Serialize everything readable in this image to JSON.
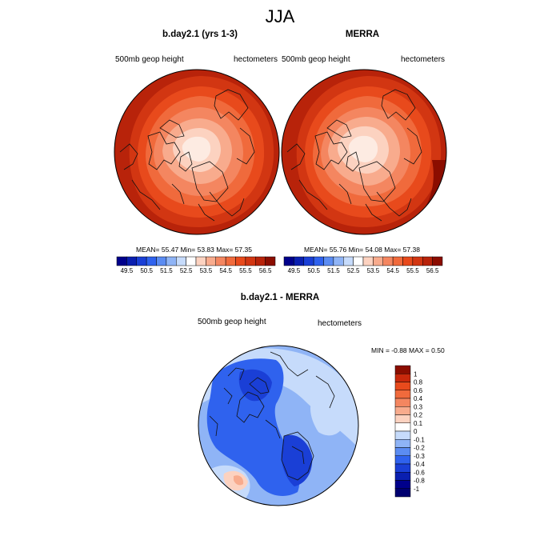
{
  "figure": {
    "title": "JJA"
  },
  "panels": [
    {
      "title": "b.day2.1 (yrs 1-3)",
      "left_label": "500mb geop height",
      "right_label": "hectometers",
      "stats": {
        "mean_label": "MEAN=",
        "mean": "55.47",
        "min_label": "Min=",
        "min": "53.83",
        "max_label": "Max=",
        "max": "57.35"
      }
    },
    {
      "title": "MERRA",
      "left_label": "500mb geop height",
      "right_label": "hectometers",
      "stats": {
        "mean_label": "MEAN=",
        "mean": "55.76",
        "min_label": "Min=",
        "min": "54.08",
        "max_label": "Max=",
        "max": "57.38"
      }
    }
  ],
  "colorbar_top": {
    "ticks": [
      "49.5",
      "50.5",
      "51.5",
      "52.5",
      "53.5",
      "54.5",
      "55.5",
      "56.5"
    ],
    "colors": [
      "#00008b",
      "#0a1fb0",
      "#1a3fd6",
      "#2f62ee",
      "#5b8cf2",
      "#8fb4f6",
      "#c6dbfb",
      "#ffffff",
      "#fcd2c0",
      "#f8ab8d",
      "#f48660",
      "#f06a3c",
      "#e84a1c",
      "#d23612",
      "#b8230a",
      "#8b0d00"
    ]
  },
  "diff_panel": {
    "title": "b.day2.1 - MERRA",
    "left_label": "500mb geop height",
    "right_label": "hectometers",
    "stats": {
      "min_label": "MIN =",
      "min": "-0.88",
      "max_label": "MAX =",
      "max": "0.50"
    }
  },
  "colorbar_diff": {
    "labels": [
      "1",
      "0.8",
      "0.6",
      "0.4",
      "0.3",
      "0.2",
      "0.1",
      "0",
      "-0.1",
      "-0.2",
      "-0.3",
      "-0.4",
      "-0.6",
      "-0.8",
      "-1"
    ],
    "colors": [
      "#8b0d00",
      "#c8280c",
      "#e84a1c",
      "#f06a3c",
      "#f48660",
      "#f8ab8d",
      "#fcd2c0",
      "#ffffff",
      "#c6dbfb",
      "#8fb4f6",
      "#5b8cf2",
      "#2f62ee",
      "#1a3fd6",
      "#0a1fb0",
      "#00008b",
      "#000070"
    ]
  },
  "colors": {
    "hot_dark": "#8b0d00",
    "hot_mid": "#e84a1c",
    "neutral": "#ffffff",
    "cold_mid": "#2f62ee",
    "cold_dark": "#00008b"
  }
}
